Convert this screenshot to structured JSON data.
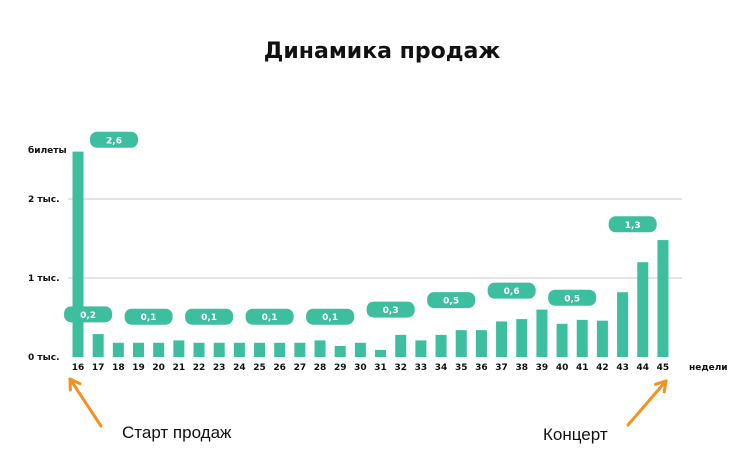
{
  "chart_data": {
    "type": "bar",
    "title": "Динамика продаж",
    "xlabel": "недели",
    "ylabel": "билеты",
    "categories": [
      "16",
      "17",
      "18",
      "19",
      "20",
      "21",
      "22",
      "23",
      "24",
      "25",
      "26",
      "27",
      "28",
      "29",
      "30",
      "31",
      "32",
      "33",
      "34",
      "35",
      "36",
      "37",
      "38",
      "39",
      "40",
      "41",
      "42",
      "43",
      "44",
      "45"
    ],
    "values": [
      2.6,
      0.29,
      0.18,
      0.18,
      0.18,
      0.21,
      0.18,
      0.18,
      0.18,
      0.18,
      0.18,
      0.18,
      0.21,
      0.14,
      0.18,
      0.09,
      0.28,
      0.21,
      0.28,
      0.34,
      0.34,
      0.45,
      0.48,
      0.6,
      0.42,
      0.47,
      0.46,
      0.82,
      1.2,
      1.48
    ],
    "yticks": [
      {
        "value": 0,
        "label": "0 тыс."
      },
      {
        "value": 1,
        "label": "1 тыс."
      },
      {
        "value": 2,
        "label": "2 тыс."
      }
    ],
    "ylim": [
      0,
      2.6
    ],
    "grid": true,
    "bar_color": "#3dbf9f",
    "data_labels": [
      {
        "from": "16",
        "to": "16",
        "value": "2,6",
        "level": 2.75
      },
      {
        "from": "16",
        "to": "17",
        "value": "0,2",
        "level": 0.54
      },
      {
        "from": "19",
        "to": "20",
        "value": "0,1",
        "level": 0.51
      },
      {
        "from": "22",
        "to": "23",
        "value": "0,1",
        "level": 0.51
      },
      {
        "from": "25",
        "to": "26",
        "value": "0,1",
        "level": 0.51
      },
      {
        "from": "28",
        "to": "29",
        "value": "0,1",
        "level": 0.51
      },
      {
        "from": "31",
        "to": "32",
        "value": "0,3",
        "level": 0.6
      },
      {
        "from": "34",
        "to": "35",
        "value": "0,5",
        "level": 0.72
      },
      {
        "from": "37",
        "to": "38",
        "value": "0,6",
        "level": 0.84
      },
      {
        "from": "40",
        "to": "41",
        "value": "0,5",
        "level": 0.75
      },
      {
        "from": "43",
        "to": "44",
        "value": "1,3",
        "level": 1.68
      }
    ],
    "annotations": [
      {
        "text": "Старт продаж",
        "target": "16"
      },
      {
        "text": "Концерт",
        "target": "45"
      }
    ],
    "arrow_color": "#f39222"
  }
}
